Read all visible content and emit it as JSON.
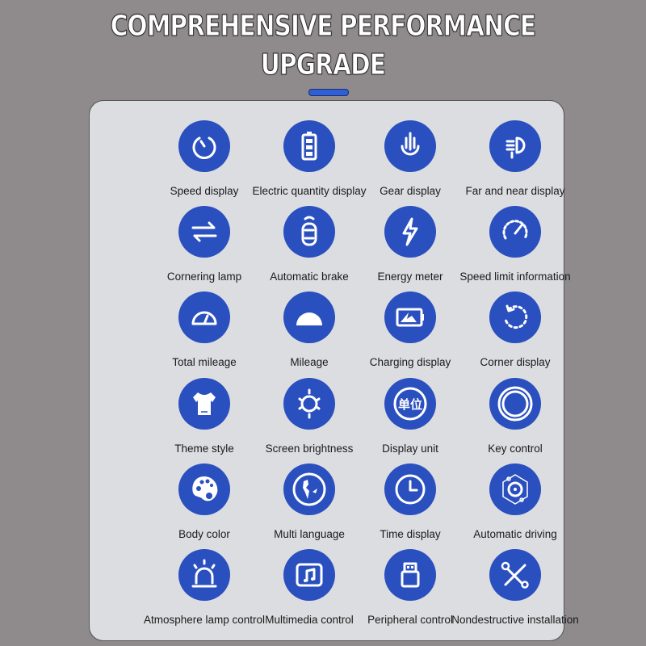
{
  "header": {
    "title_line1": "COMPREHENSIVE PERFORMANCE",
    "title_line2": "UPGRADE"
  },
  "colors": {
    "background": "#8f8a8b",
    "panel": "#dcdde0",
    "icon_circle": "#2a4fbf",
    "accent_bar": "#2e5fd6"
  },
  "features": [
    {
      "label": "Speed display",
      "icon": "speedometer-icon"
    },
    {
      "label": "Electric quantity display",
      "icon": "battery-icon"
    },
    {
      "label": "Gear display",
      "icon": "gear-hand-icon"
    },
    {
      "label": "Far and near display",
      "icon": "headlight-icon"
    },
    {
      "label": "Cornering lamp",
      "icon": "swap-arrows-icon"
    },
    {
      "label": "Automatic brake",
      "icon": "car-signal-icon"
    },
    {
      "label": "Energy meter",
      "icon": "lightning-icon"
    },
    {
      "label": "Speed limit information",
      "icon": "gauge-icon"
    },
    {
      "label": "Total mileage",
      "icon": "odometer-icon"
    },
    {
      "label": "Mileage",
      "icon": "half-dome-icon"
    },
    {
      "label": "Charging display",
      "icon": "charging-battery-icon"
    },
    {
      "label": "Corner display",
      "icon": "rotate-icon"
    },
    {
      "label": "Theme style",
      "icon": "tshirt-icon"
    },
    {
      "label": "Screen brightness",
      "icon": "sun-icon"
    },
    {
      "label": "Display unit",
      "icon": "unit-badge-icon",
      "glyph": "单位"
    },
    {
      "label": "Key control",
      "icon": "ring-button-icon"
    },
    {
      "label": "Body color",
      "icon": "palette-icon"
    },
    {
      "label": "Multi language",
      "icon": "globe-icon"
    },
    {
      "label": "Time display",
      "icon": "clock-icon"
    },
    {
      "label": "Automatic driving",
      "icon": "steering-wheel-icon"
    },
    {
      "label": "Atmosphere lamp control",
      "icon": "alarm-lamp-icon"
    },
    {
      "label": "Multimedia control",
      "icon": "music-note-icon"
    },
    {
      "label": "Peripheral control",
      "icon": "usb-icon"
    },
    {
      "label": "Nondestructive installation",
      "icon": "tools-icon"
    }
  ]
}
